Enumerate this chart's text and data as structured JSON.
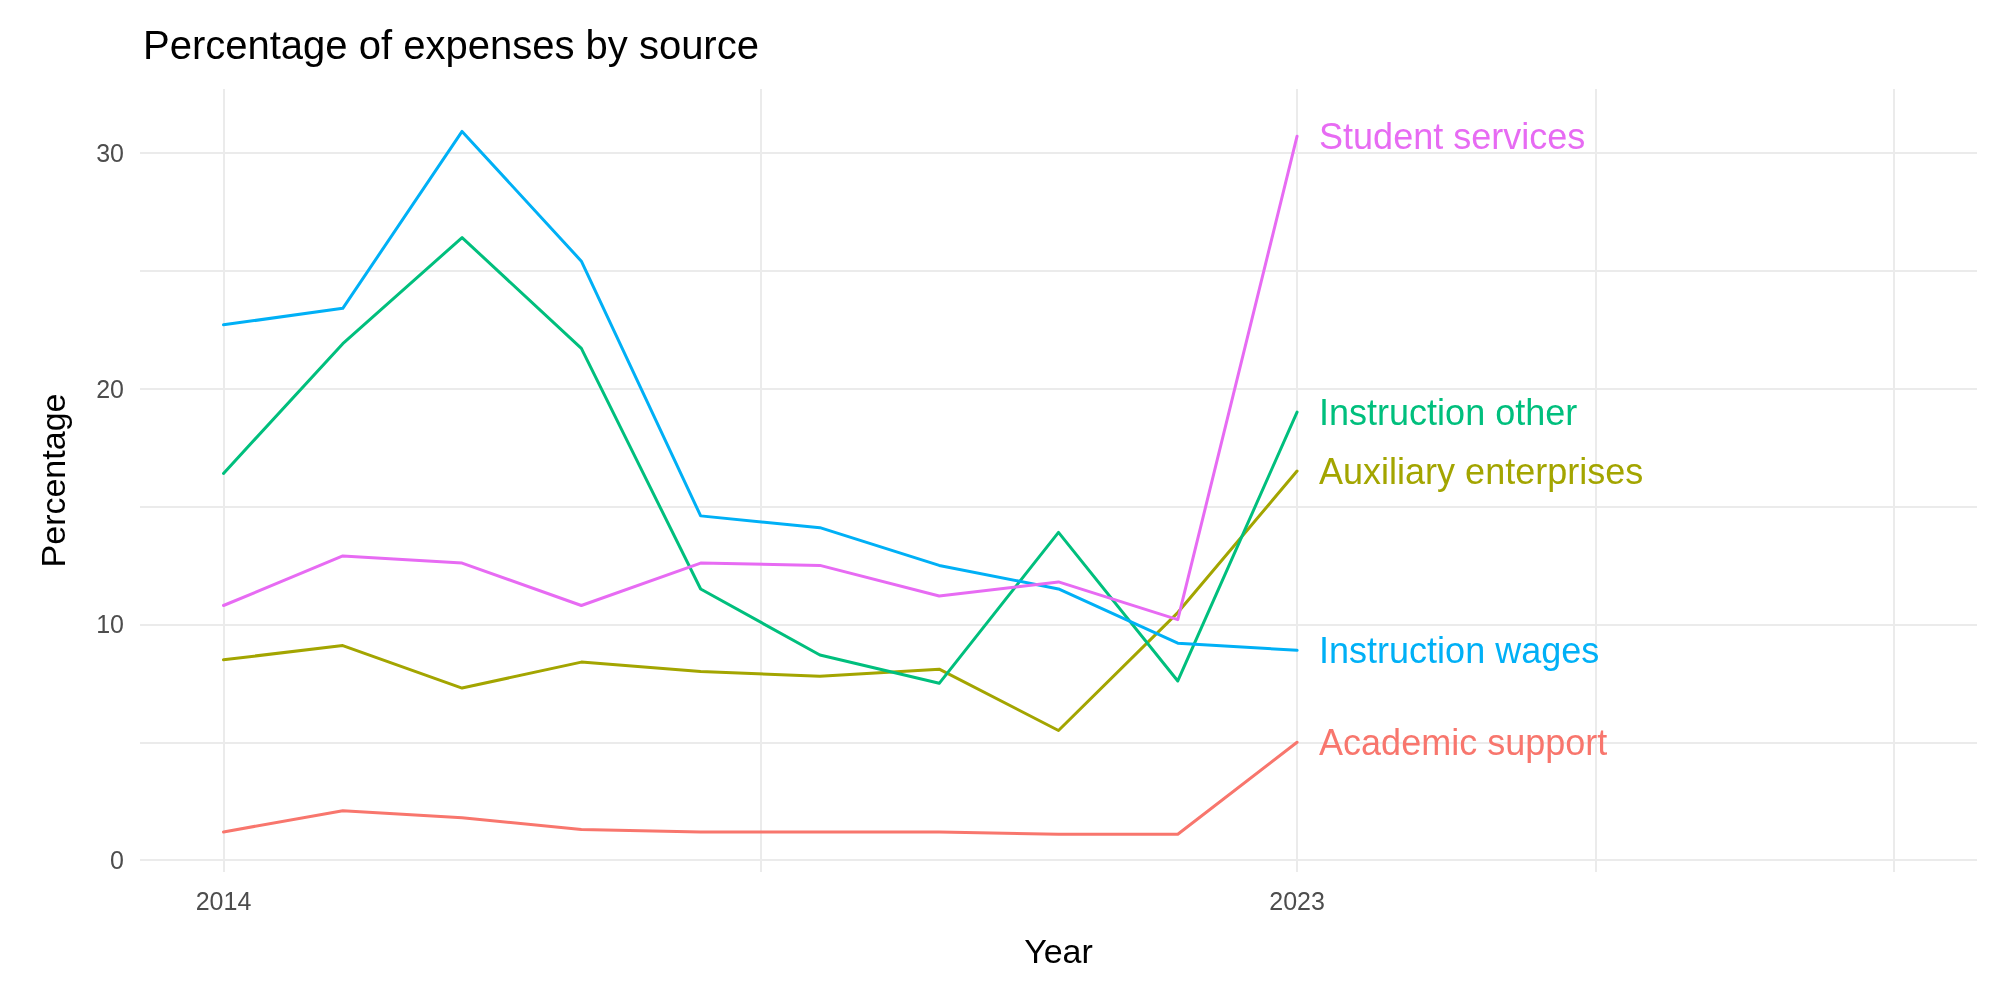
{
  "chart_data": {
    "type": "line",
    "title": "Percentage of expenses by source",
    "xlabel": "Year",
    "ylabel": "Percentage",
    "x": [
      2014,
      2015,
      2016,
      2017,
      2018,
      2019,
      2020,
      2021,
      2022,
      2023
    ],
    "series": [
      {
        "name": "Academic support",
        "color": "#f8766d",
        "values": [
          1.2,
          2.1,
          1.8,
          1.3,
          1.2,
          1.2,
          1.2,
          1.1,
          1.1,
          5.0
        ]
      },
      {
        "name": "Auxiliary enterprises",
        "color": "#a3a500",
        "values": [
          8.5,
          9.1,
          7.3,
          8.4,
          8.0,
          7.8,
          8.1,
          5.5,
          10.5,
          16.5
        ]
      },
      {
        "name": "Instruction other",
        "color": "#00bf7d",
        "values": [
          16.4,
          21.9,
          26.4,
          21.7,
          11.5,
          8.7,
          7.5,
          13.9,
          7.6,
          19.0
        ]
      },
      {
        "name": "Instruction wages",
        "color": "#00b0f6",
        "values": [
          22.7,
          23.4,
          30.9,
          25.4,
          14.6,
          14.1,
          12.5,
          11.5,
          9.2,
          8.9
        ]
      },
      {
        "name": "Student services",
        "color": "#e76bf3",
        "values": [
          10.8,
          12.9,
          12.6,
          10.8,
          12.6,
          12.5,
          11.2,
          11.8,
          10.2,
          30.7
        ]
      }
    ],
    "xlim": [
      2013.3,
      2028.7
    ],
    "xticks": [
      2014,
      {
        "value": 2018.5,
        "label": null
      },
      2023,
      {
        "value": 2025.5,
        "label": null
      },
      {
        "value": 2028,
        "label": null
      }
    ],
    "ylim": [
      -0.5,
      32.7
    ],
    "yticks": [
      0,
      {
        "value": 5,
        "label": null
      },
      10,
      {
        "value": 15,
        "label": null
      },
      20,
      {
        "value": 25,
        "label": null
      },
      30
    ],
    "grid": true,
    "legend": false,
    "marker": "none",
    "line_style": "solid"
  }
}
